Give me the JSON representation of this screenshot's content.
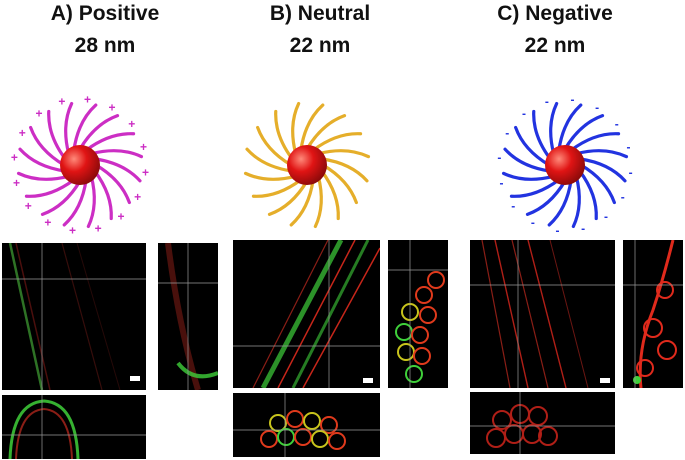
{
  "panels": [
    {
      "letter_label": "A) Positive",
      "size_label": "28 nm",
      "ligand_color": "#cc2ec4",
      "charge_symbol": "+"
    },
    {
      "letter_label": "B) Neutral",
      "size_label": "22 nm",
      "ligand_color": "#e5ae2a",
      "charge_symbol": ""
    },
    {
      "letter_label": "C) Negative",
      "size_label": "22 nm",
      "ligand_color": "#2233e0",
      "charge_symbol": "-"
    }
  ],
  "colors": {
    "core": "#e01414",
    "membrane": "#d02a1c",
    "signal": "#3fd03a",
    "crosshair": "#9a9a9a",
    "background": "#000000"
  }
}
